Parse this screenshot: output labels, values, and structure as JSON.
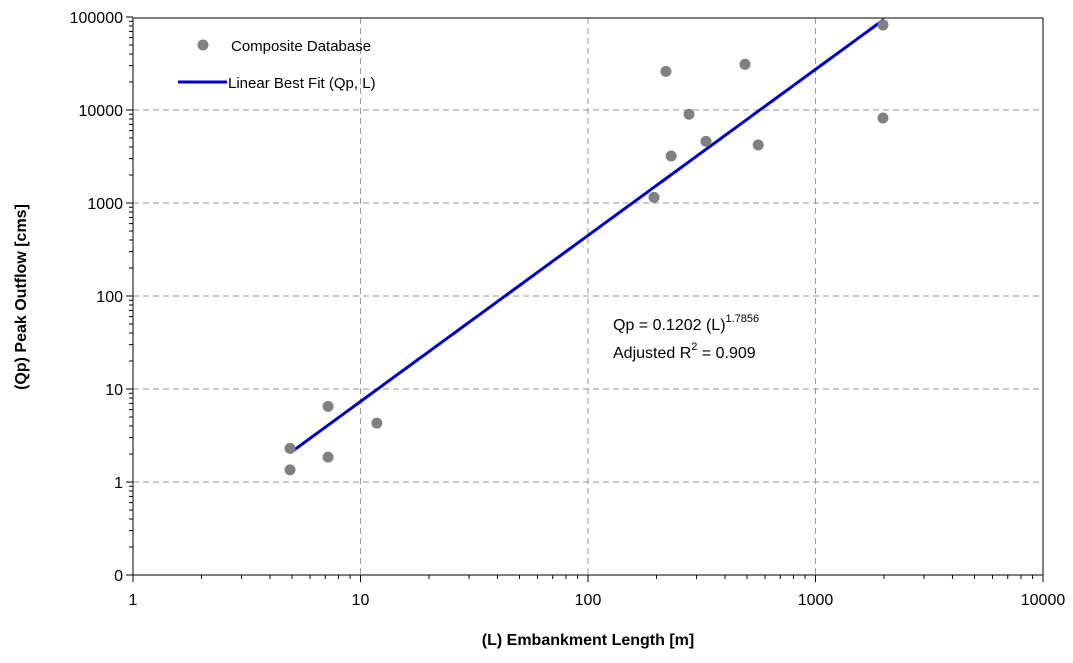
{
  "chart_data": {
    "type": "scatter",
    "xlabel": "(L) Embankment Length [m]",
    "ylabel": "(Qp) Peak Outflow [cms]",
    "x_scale": "log",
    "y_scale": "log",
    "xlim": [
      1,
      10000
    ],
    "ylim_top": 100000,
    "x_ticks": [
      "1",
      "10",
      "100",
      "1000",
      "10000"
    ],
    "y_ticks": [
      "0",
      "1",
      "10",
      "100",
      "1000",
      "10000",
      "100000"
    ],
    "grid": true,
    "legend_position": "top-left",
    "series": [
      {
        "name": "Composite Database",
        "kind": "scatter",
        "color": "#808080",
        "points": [
          {
            "x": 4.9,
            "y": 2.3
          },
          {
            "x": 4.9,
            "y": 1.35
          },
          {
            "x": 7.2,
            "y": 6.5
          },
          {
            "x": 7.2,
            "y": 1.85
          },
          {
            "x": 11.8,
            "y": 4.3
          },
          {
            "x": 195,
            "y": 1150
          },
          {
            "x": 220,
            "y": 26000
          },
          {
            "x": 232,
            "y": 3200
          },
          {
            "x": 278,
            "y": 9000
          },
          {
            "x": 330,
            "y": 4600
          },
          {
            "x": 490,
            "y": 31000
          },
          {
            "x": 560,
            "y": 4200
          },
          {
            "x": 1980,
            "y": 82000
          },
          {
            "x": 1980,
            "y": 8200
          }
        ]
      },
      {
        "name": "Linear Best Fit (Qp, L)",
        "kind": "line",
        "color": "#0000cc",
        "coefficient": 0.1202,
        "exponent": 1.7856,
        "x_range": [
          4.9,
          2000
        ]
      }
    ],
    "annotation": {
      "equation_prefix": "Qp = 0.1202 (L)",
      "equation_exponent": "1.7856",
      "r2_prefix": "Adjusted R",
      "r2_superscript": "2",
      "r2_suffix": " = 0.909"
    }
  }
}
